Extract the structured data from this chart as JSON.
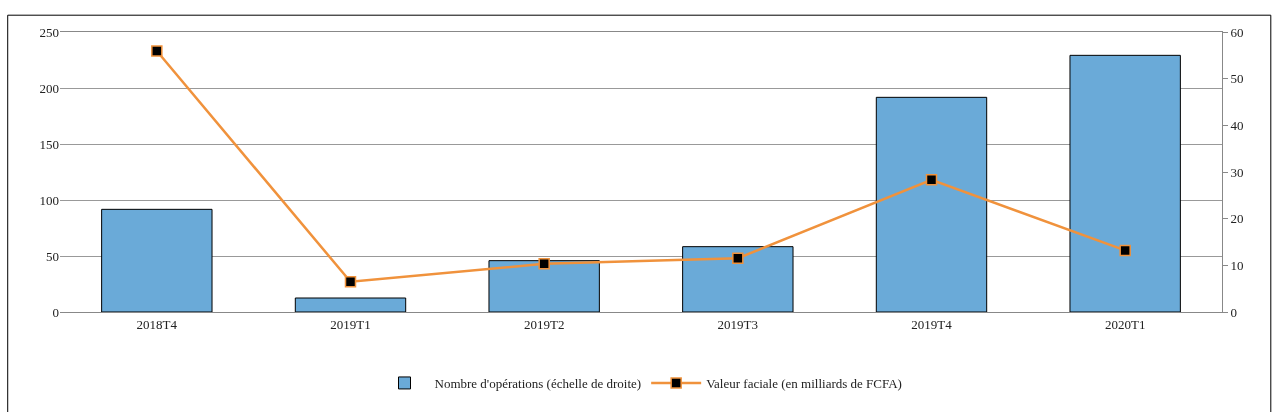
{
  "chart_data": {
    "type": "bar",
    "categories": [
      "2018T4",
      "2019T1",
      "2019T2",
      "2019T3",
      "2019T4",
      "2020T1"
    ],
    "series": [
      {
        "name": "Nombre d'opérations (échelle de droite)",
        "axis": "y2",
        "color": "#6aaad8",
        "values": [
          22,
          3,
          11,
          14,
          46,
          55
        ]
      },
      {
        "name": "Valeur faciale (en milliards de FCFA)",
        "type": "line",
        "color": "#f0923c",
        "marker": "square",
        "line_style": "solid",
        "values": [
          233,
          27,
          43,
          48,
          118,
          55
        ]
      }
    ],
    "ylim": [
      0,
      250
    ],
    "yticks": [
      0,
      50,
      100,
      150,
      200,
      250
    ],
    "y2lim": [
      0,
      60
    ],
    "y2ticks": [
      0,
      10,
      20,
      30,
      40,
      50,
      60
    ],
    "grid": "y",
    "legend": "bottom"
  }
}
